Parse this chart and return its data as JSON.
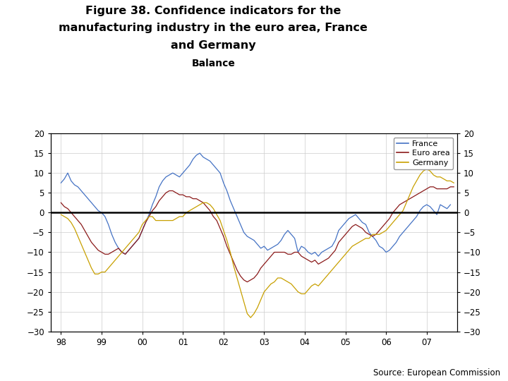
{
  "title_line1": "Figure 38. Confidence indicators for the",
  "title_line2": "manufacturing industry in the euro area, France",
  "title_line3": "and Germany",
  "subtitle": "Balance",
  "source_text": "Source: European Commission",
  "ylim": [
    -30,
    20
  ],
  "yticks": [
    -30,
    -25,
    -20,
    -15,
    -10,
    -5,
    0,
    5,
    10,
    15,
    20
  ],
  "xtick_labels": [
    "98",
    "99",
    "00",
    "01",
    "02",
    "03",
    "04",
    "05",
    "06",
    "07"
  ],
  "legend_labels": [
    "France",
    "Euro area",
    "Germany"
  ],
  "france_color": "#4472C4",
  "euro_color": "#8B1A1A",
  "germany_color": "#C8A000",
  "background_color": "#FFFFFF",
  "grid_color": "#CCCCCC",
  "blue_bar_color": "#1A3B7A",
  "france": [
    7.5,
    8.5,
    10.0,
    8.0,
    7.0,
    6.5,
    5.5,
    4.5,
    3.5,
    2.5,
    1.5,
    0.5,
    0.0,
    -1.0,
    -3.0,
    -5.5,
    -7.5,
    -9.0,
    -10.0,
    -10.5,
    -9.5,
    -8.5,
    -7.5,
    -6.5,
    -4.5,
    -2.5,
    -0.5,
    2.0,
    4.0,
    6.5,
    8.0,
    9.0,
    9.5,
    10.0,
    9.5,
    9.0,
    10.0,
    11.0,
    12.0,
    13.5,
    14.5,
    15.0,
    14.0,
    13.5,
    13.0,
    12.0,
    11.0,
    10.0,
    7.5,
    5.5,
    3.0,
    1.0,
    -1.0,
    -3.0,
    -5.0,
    -6.0,
    -6.5,
    -7.0,
    -8.0,
    -9.0,
    -8.5,
    -9.5,
    -9.0,
    -8.5,
    -8.0,
    -7.0,
    -5.5,
    -4.5,
    -5.5,
    -6.5,
    -10.0,
    -8.5,
    -9.0,
    -10.0,
    -10.5,
    -10.0,
    -11.0,
    -10.0,
    -9.5,
    -9.0,
    -8.5,
    -7.0,
    -4.5,
    -3.5,
    -2.5,
    -1.5,
    -1.0,
    -0.5,
    -1.5,
    -2.5,
    -3.0,
    -5.0,
    -6.0,
    -7.0,
    -8.5,
    -9.0,
    -10.0,
    -9.5,
    -8.5,
    -7.5,
    -6.0,
    -5.0,
    -4.0,
    -3.0,
    -2.0,
    -1.0,
    0.5,
    1.5,
    2.0,
    1.5,
    0.5,
    -0.5,
    2.0,
    1.5,
    1.0,
    2.0
  ],
  "euro": [
    2.5,
    1.5,
    1.0,
    0.0,
    -1.0,
    -2.0,
    -3.0,
    -4.5,
    -6.0,
    -7.5,
    -8.5,
    -9.5,
    -10.0,
    -10.5,
    -10.5,
    -10.0,
    -9.5,
    -9.0,
    -10.0,
    -10.5,
    -9.5,
    -8.5,
    -7.5,
    -6.5,
    -4.5,
    -2.5,
    -1.0,
    0.5,
    1.5,
    3.0,
    4.0,
    5.0,
    5.5,
    5.5,
    5.0,
    4.5,
    4.5,
    4.0,
    4.0,
    3.5,
    3.5,
    3.0,
    2.5,
    1.5,
    0.5,
    -1.0,
    -2.0,
    -4.0,
    -6.0,
    -8.5,
    -10.5,
    -12.5,
    -14.5,
    -16.0,
    -17.0,
    -17.5,
    -17.0,
    -16.5,
    -15.5,
    -14.0,
    -13.0,
    -12.0,
    -11.0,
    -10.0,
    -10.0,
    -10.0,
    -10.0,
    -10.5,
    -10.5,
    -10.0,
    -10.0,
    -11.0,
    -11.5,
    -12.0,
    -12.5,
    -12.0,
    -13.0,
    -12.5,
    -12.0,
    -11.5,
    -10.5,
    -9.5,
    -7.5,
    -6.5,
    -5.5,
    -4.5,
    -3.5,
    -3.0,
    -3.5,
    -4.0,
    -5.0,
    -5.5,
    -6.0,
    -5.5,
    -4.5,
    -3.5,
    -2.5,
    -1.5,
    0.0,
    1.0,
    2.0,
    2.5,
    3.0,
    3.5,
    4.0,
    4.5,
    5.0,
    5.5,
    6.0,
    6.5,
    6.5,
    6.0,
    6.0,
    6.0,
    6.0,
    6.5,
    6.5
  ],
  "germany": [
    -0.5,
    -1.0,
    -1.5,
    -2.5,
    -4.0,
    -6.0,
    -8.0,
    -10.0,
    -12.0,
    -14.0,
    -15.5,
    -15.5,
    -15.0,
    -15.0,
    -14.0,
    -13.0,
    -12.0,
    -11.0,
    -10.0,
    -9.0,
    -8.0,
    -7.0,
    -6.0,
    -5.0,
    -3.0,
    -2.0,
    -1.0,
    -1.0,
    -2.0,
    -2.0,
    -2.0,
    -2.0,
    -2.0,
    -2.0,
    -1.5,
    -1.0,
    -1.0,
    0.0,
    0.5,
    1.0,
    1.5,
    2.0,
    2.5,
    2.5,
    2.0,
    1.0,
    -0.5,
    -2.0,
    -4.5,
    -7.0,
    -10.0,
    -13.5,
    -16.5,
    -19.5,
    -22.5,
    -25.5,
    -26.5,
    -25.5,
    -24.0,
    -22.0,
    -20.0,
    -19.0,
    -18.0,
    -17.5,
    -16.5,
    -16.5,
    -17.0,
    -17.5,
    -18.0,
    -19.0,
    -20.0,
    -20.5,
    -20.5,
    -19.5,
    -18.5,
    -18.0,
    -18.5,
    -17.5,
    -16.5,
    -15.5,
    -14.5,
    -13.5,
    -12.5,
    -11.5,
    -10.5,
    -9.5,
    -8.5,
    -8.0,
    -7.5,
    -7.0,
    -6.5,
    -6.5,
    -5.5,
    -5.5,
    -5.5,
    -5.0,
    -4.5,
    -3.5,
    -2.5,
    -1.5,
    -0.5,
    0.5,
    2.5,
    4.5,
    6.5,
    8.0,
    9.5,
    10.5,
    11.0,
    10.5,
    9.5,
    9.0,
    9.0,
    8.5,
    8.0,
    8.0,
    7.5
  ]
}
